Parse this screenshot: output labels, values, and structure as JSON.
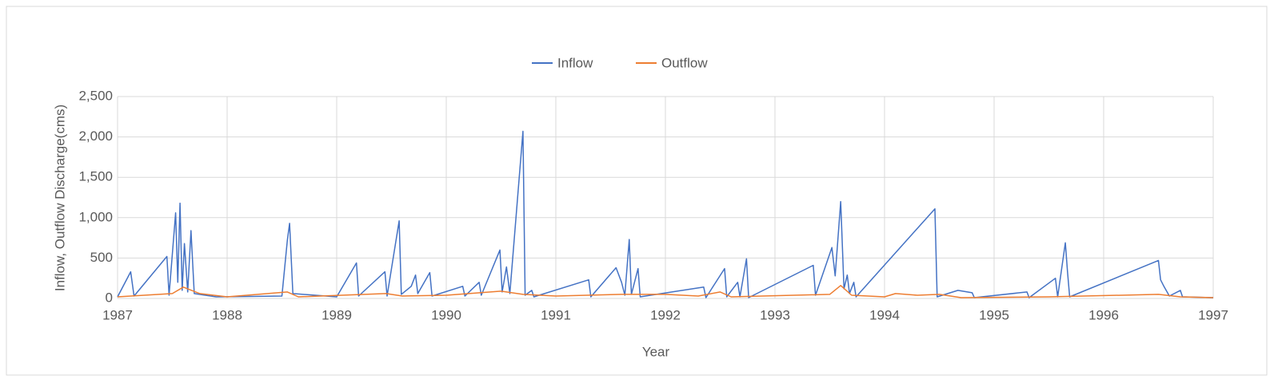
{
  "chart_data": {
    "type": "line",
    "x_label": "Year",
    "y_label": "Inflow, Outflow Discharge(cms)",
    "xlim": [
      1987,
      1997
    ],
    "xticks": [
      1987,
      1988,
      1989,
      1990,
      1991,
      1992,
      1993,
      1994,
      1995,
      1996,
      1997
    ],
    "ylim": [
      0,
      2500
    ],
    "yticks": [
      0,
      500,
      {
        "value": 1000,
        "label": "1,000"
      },
      {
        "value": 1500,
        "label": "1,500"
      },
      {
        "value": 2000,
        "label": "2,000"
      },
      {
        "value": 2500,
        "label": "2,500"
      }
    ],
    "grid": true,
    "legend": "top",
    "series": [
      {
        "name": "Inflow",
        "color": "#4472c4",
        "x": [
          1987.0,
          1987.12,
          1987.15,
          1987.45,
          1987.47,
          1987.53,
          1987.55,
          1987.57,
          1987.59,
          1987.61,
          1987.64,
          1987.67,
          1987.7,
          1987.9,
          1988.5,
          1988.55,
          1988.57,
          1988.6,
          1989.0,
          1989.18,
          1989.2,
          1989.44,
          1989.46,
          1989.57,
          1989.59,
          1989.68,
          1989.72,
          1989.74,
          1989.85,
          1989.87,
          1990.15,
          1990.17,
          1990.3,
          1990.32,
          1990.49,
          1990.51,
          1990.55,
          1990.58,
          1990.7,
          1990.72,
          1990.78,
          1990.8,
          1991.3,
          1991.32,
          1991.55,
          1991.6,
          1991.63,
          1991.67,
          1991.69,
          1991.75,
          1991.77,
          1992.35,
          1992.37,
          1992.54,
          1992.56,
          1992.66,
          1992.68,
          1992.74,
          1992.76,
          1993.35,
          1993.37,
          1993.52,
          1993.55,
          1993.6,
          1993.63,
          1993.66,
          1993.68,
          1993.72,
          1993.74,
          1994.46,
          1994.48,
          1994.67,
          1994.8,
          1994.82,
          1995.3,
          1995.32,
          1995.56,
          1995.58,
          1995.65,
          1995.67,
          1995.69,
          1996.5,
          1996.52,
          1996.55,
          1996.6,
          1996.7,
          1996.72,
          1997.0
        ],
        "values": [
          20,
          330,
          30,
          520,
          40,
          1060,
          200,
          1180,
          100,
          680,
          80,
          840,
          60,
          20,
          30,
          720,
          930,
          60,
          20,
          440,
          30,
          330,
          30,
          960,
          50,
          150,
          290,
          60,
          320,
          30,
          150,
          30,
          200,
          40,
          600,
          80,
          390,
          60,
          2070,
          40,
          100,
          20,
          230,
          20,
          380,
          200,
          40,
          730,
          50,
          370,
          20,
          140,
          10,
          370,
          20,
          200,
          20,
          490,
          10,
          410,
          40,
          630,
          280,
          1200,
          120,
          290,
          60,
          200,
          20,
          1110,
          20,
          100,
          70,
          10,
          80,
          10,
          250,
          20,
          690,
          330,
          20,
          470,
          230,
          150,
          30,
          100,
          20,
          10
        ]
      },
      {
        "name": "Outflow",
        "color": "#ed7d31",
        "x": [
          1987.0,
          1987.5,
          1987.6,
          1987.75,
          1988.0,
          1988.55,
          1988.65,
          1989.45,
          1989.6,
          1990.0,
          1990.5,
          1990.7,
          1991.0,
          1991.6,
          1992.0,
          1992.3,
          1992.5,
          1992.6,
          1993.5,
          1993.6,
          1993.7,
          1994.0,
          1994.1,
          1994.3,
          1994.5,
          1994.7,
          1995.5,
          1996.5,
          1996.7,
          1997.0
        ],
        "values": [
          20,
          60,
          140,
          60,
          20,
          80,
          20,
          60,
          30,
          40,
          90,
          50,
          30,
          50,
          50,
          30,
          80,
          20,
          50,
          160,
          40,
          20,
          60,
          40,
          50,
          10,
          20,
          50,
          20,
          10
        ]
      }
    ]
  }
}
